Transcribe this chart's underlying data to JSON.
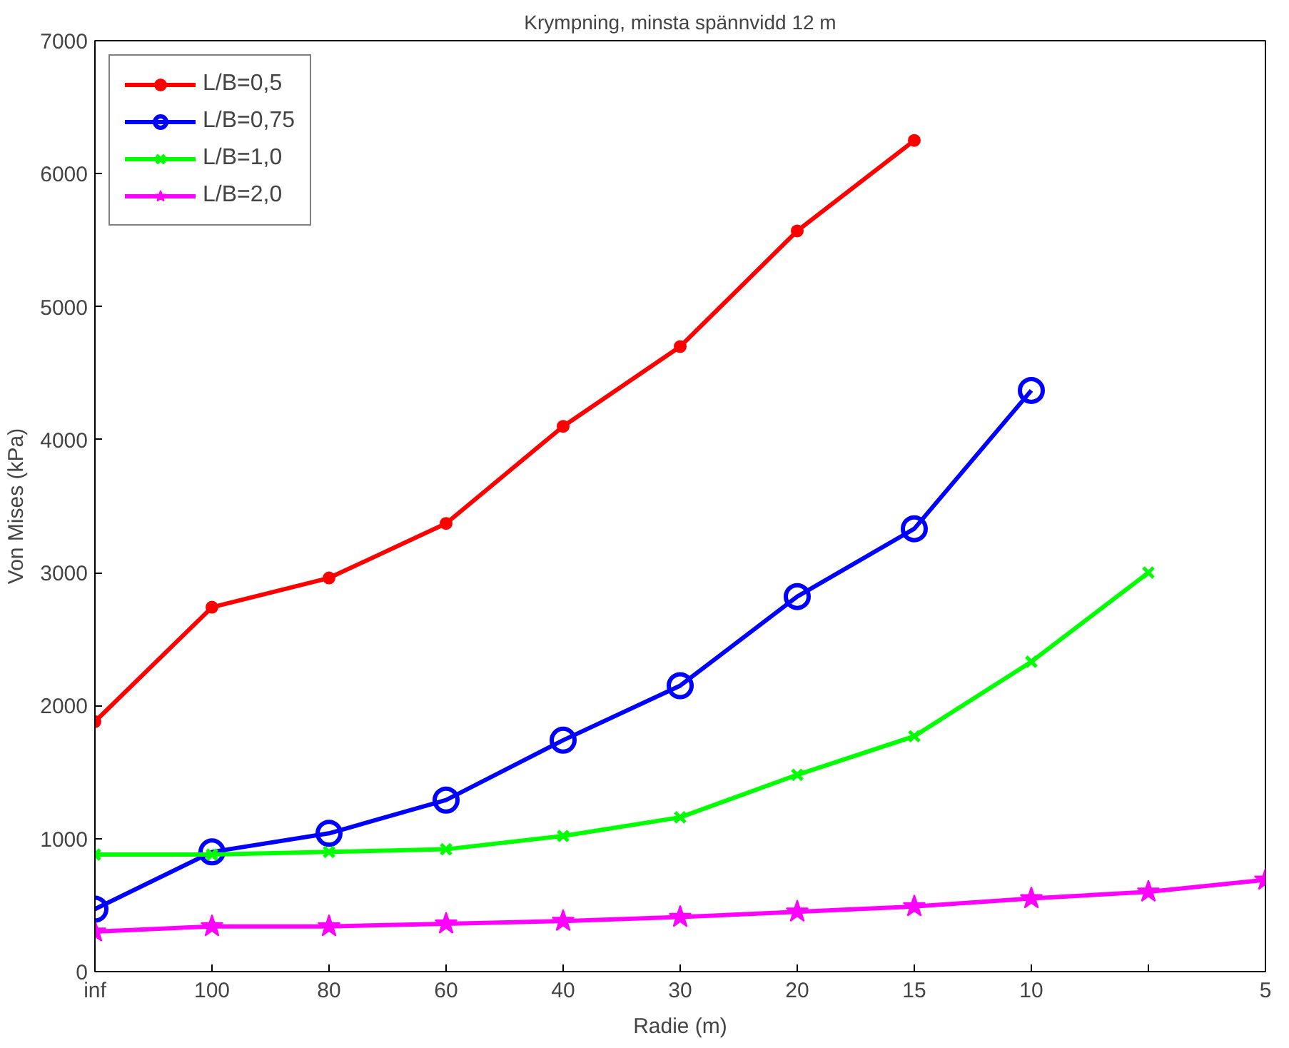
{
  "chart_data": {
    "type": "line",
    "title": "Krympning, minsta spännvidd 12 m",
    "xlabel": "Radie (m)",
    "ylabel": "Von Mises (kPa)",
    "categories": [
      "inf",
      "100",
      "80",
      "60",
      "40",
      "30",
      "20",
      "15",
      "10",
      null,
      "5"
    ],
    "ylim": [
      0,
      7000
    ],
    "yticks": [
      0,
      1000,
      2000,
      3000,
      4000,
      5000,
      6000,
      7000
    ],
    "grid": false,
    "legend": "top left",
    "series": [
      {
        "name": "L/B=0,5",
        "color": "#ff0000",
        "marker": "circle",
        "values": [
          1880,
          2740,
          2960,
          3370,
          4100,
          4700,
          5570,
          6250,
          null,
          null,
          null
        ]
      },
      {
        "name": "L/B=0,75",
        "color": "#0000ff",
        "marker": "open_circle",
        "values": [
          470,
          900,
          1040,
          1290,
          1740,
          2150,
          2820,
          3330,
          4370,
          null,
          null
        ]
      },
      {
        "name": "L/B=1,0",
        "color": "#00ff00",
        "marker": "cross",
        "values": [
          880,
          880,
          900,
          920,
          1020,
          1160,
          1480,
          1770,
          2330,
          3000,
          null
        ]
      },
      {
        "name": "L/B=2,0",
        "color": "#ff00ff",
        "marker": "star",
        "values": [
          300,
          340,
          340,
          360,
          380,
          410,
          450,
          490,
          550,
          600,
          690
        ]
      }
    ]
  }
}
